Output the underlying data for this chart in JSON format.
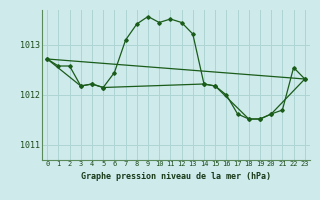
{
  "xlabel": "Graphe pression niveau de la mer (hPa)",
  "background_color": "#ceeaea",
  "grid_color": "#aed4d4",
  "line_color": "#1a5c1a",
  "ylim": [
    1010.7,
    1013.7
  ],
  "xlim": [
    -0.5,
    23.5
  ],
  "yticks": [
    1011,
    1012,
    1013
  ],
  "xticks": [
    0,
    1,
    2,
    3,
    4,
    5,
    6,
    7,
    8,
    9,
    10,
    11,
    12,
    13,
    14,
    15,
    16,
    17,
    18,
    19,
    20,
    21,
    22,
    23
  ],
  "series1_x": [
    0,
    1,
    2,
    3,
    4,
    5,
    6,
    7,
    8,
    9,
    10,
    11,
    12,
    13,
    14,
    15,
    16,
    17,
    18,
    19,
    20,
    21,
    22,
    23
  ],
  "series1_y": [
    1012.72,
    1012.58,
    1012.58,
    1012.18,
    1012.22,
    1012.15,
    1012.45,
    1013.1,
    1013.42,
    1013.57,
    1013.45,
    1013.52,
    1013.45,
    1013.22,
    1012.22,
    1012.18,
    1012.0,
    1011.62,
    1011.52,
    1011.52,
    1011.62,
    1011.7,
    1012.55,
    1012.32
  ],
  "series2_x": [
    0,
    3,
    4,
    5,
    14,
    15,
    18,
    19,
    20,
    23
  ],
  "series2_y": [
    1012.72,
    1012.18,
    1012.22,
    1012.15,
    1012.22,
    1012.18,
    1011.52,
    1011.52,
    1011.62,
    1012.32
  ],
  "series3_x": [
    0,
    23
  ],
  "series3_y": [
    1012.72,
    1012.32
  ]
}
